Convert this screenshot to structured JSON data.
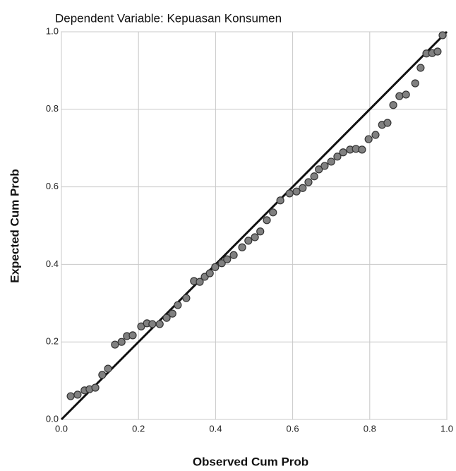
{
  "chart_data": {
    "type": "scatter",
    "title": "Dependent Variable: Kepuasan Konsumen",
    "xlabel": "Observed Cum Prob",
    "ylabel": "Expected Cum Prob",
    "xlim": [
      0,
      1
    ],
    "ylim": [
      0,
      1
    ],
    "xticks": [
      {
        "value": 0,
        "label": "0.0"
      },
      0.2,
      0.4,
      0.6,
      0.8,
      {
        "value": 1,
        "label": "1.0"
      }
    ],
    "yticks": [
      {
        "value": 0,
        "label": "0.0"
      },
      0.2,
      0.4,
      0.6,
      0.8,
      {
        "value": 1,
        "label": "1.0"
      }
    ],
    "grid": true,
    "color": "#808080",
    "x": [
      0.024,
      0.042,
      0.06,
      0.073,
      0.088,
      0.106,
      0.121,
      0.139,
      0.156,
      0.17,
      0.185,
      0.207,
      0.222,
      0.236,
      0.255,
      0.273,
      0.288,
      0.302,
      0.324,
      0.344,
      0.359,
      0.372,
      0.385,
      0.399,
      0.416,
      0.43,
      0.447,
      0.469,
      0.485,
      0.502,
      0.516,
      0.533,
      0.549,
      0.568,
      0.592,
      0.61,
      0.626,
      0.641,
      0.656,
      0.668,
      0.683,
      0.7,
      0.716,
      0.731,
      0.749,
      0.764,
      0.78,
      0.797,
      0.815,
      0.832,
      0.846,
      0.861,
      0.877,
      0.894,
      0.918,
      0.932,
      0.947,
      0.962,
      0.976,
      0.989
    ],
    "values": [
      0.06,
      0.064,
      0.075,
      0.078,
      0.082,
      0.115,
      0.131,
      0.193,
      0.2,
      0.215,
      0.217,
      0.24,
      0.248,
      0.246,
      0.246,
      0.262,
      0.273,
      0.295,
      0.313,
      0.357,
      0.355,
      0.368,
      0.377,
      0.393,
      0.403,
      0.413,
      0.424,
      0.444,
      0.461,
      0.47,
      0.485,
      0.514,
      0.534,
      0.565,
      0.583,
      0.588,
      0.597,
      0.612,
      0.627,
      0.645,
      0.654,
      0.665,
      0.678,
      0.689,
      0.696,
      0.698,
      0.696,
      0.723,
      0.734,
      0.76,
      0.765,
      0.811,
      0.834,
      0.838,
      0.867,
      0.907,
      0.944,
      0.945,
      0.949,
      0.991
    ]
  }
}
